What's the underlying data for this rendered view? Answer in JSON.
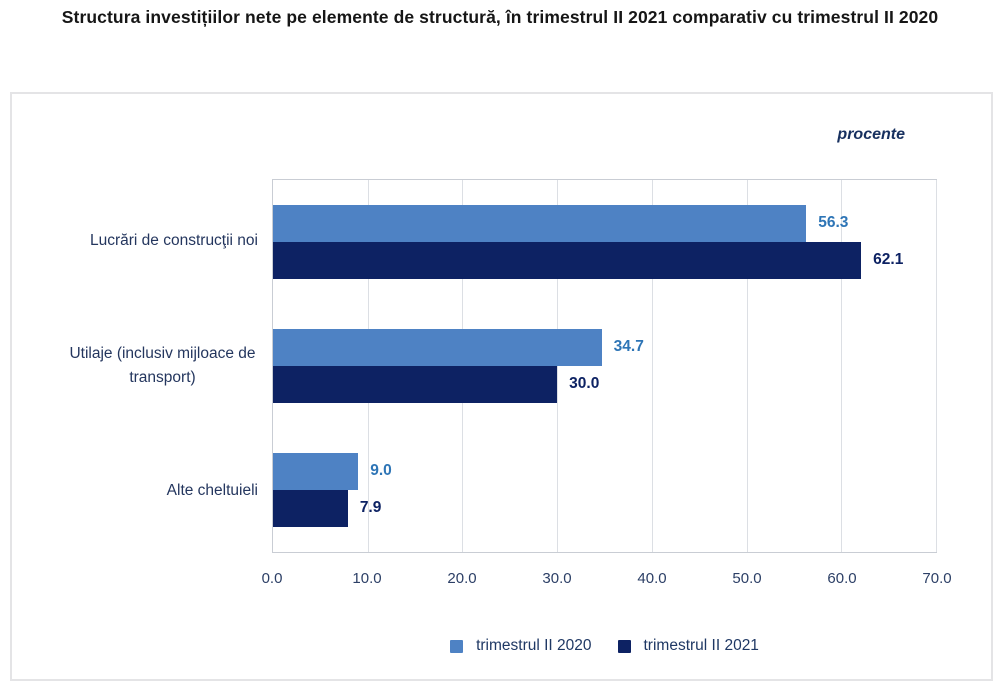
{
  "page": {
    "title": "Structura investițiilor nete pe elemente de structură, în trimestrul II 2021 comparativ cu trimestrul II 2020",
    "unit_label": "procente"
  },
  "chart_data": {
    "type": "bar",
    "orientation": "horizontal",
    "title": "Structura investițiilor nete pe elemente de structură, în trimestrul II 2021 comparativ cu trimestrul II 2020",
    "unit_label": "procente",
    "categories": [
      "Lucrări de construcţii noi",
      "Utilaje (inclusiv mijloace de transport)",
      "Alte cheltuieli"
    ],
    "series": [
      {
        "name": "trimestrul II 2020",
        "color": "#4e82c4",
        "label_color": "#2e75b6",
        "values": [
          56.3,
          34.7,
          9.0
        ],
        "labels": [
          "56.3",
          "34.7",
          "9.0"
        ]
      },
      {
        "name": "trimestrul II 2021",
        "color": "#0d2263",
        "label_color": "#0d2263",
        "values": [
          62.1,
          30.0,
          7.9
        ],
        "labels": [
          "62.1",
          "30.0",
          "7.9"
        ]
      }
    ],
    "xlim": [
      0,
      70
    ],
    "xticks": [
      "0.0",
      "10.0",
      "20.0",
      "30.0",
      "40.0",
      "50.0",
      "60.0",
      "70.0"
    ],
    "grid": true,
    "legend_position": "bottom"
  }
}
